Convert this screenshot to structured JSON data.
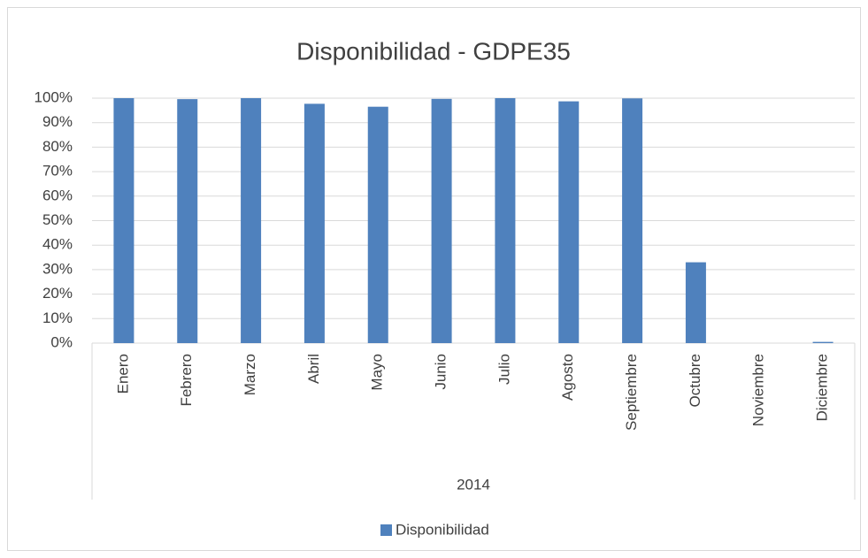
{
  "chart_data": {
    "type": "bar",
    "title": "Disponibilidad - GDPE35",
    "categories": [
      "Enero",
      "Febrero",
      "Marzo",
      "Abril",
      "Mayo",
      "Junio",
      "Julio",
      "Agosto",
      "Septiembre",
      "Octubre",
      "Noviembre",
      "Diciembre"
    ],
    "category_group": "2014",
    "series": [
      {
        "name": "Disponibilidad",
        "color": "#4f81bd",
        "values": [
          100,
          99.6,
          100,
          97.7,
          96.5,
          99.7,
          100,
          98.7,
          99.9,
          33,
          0,
          0.5
        ]
      }
    ],
    "ylim": [
      0,
      100
    ],
    "yticks": [
      {
        "value": 0,
        "label": "0%"
      },
      {
        "value": 10,
        "label": "10%"
      },
      {
        "value": 20,
        "label": "20%"
      },
      {
        "value": 30,
        "label": "30%"
      },
      {
        "value": 40,
        "label": "40%"
      },
      {
        "value": 50,
        "label": "50%"
      },
      {
        "value": 60,
        "label": "60%"
      },
      {
        "value": 70,
        "label": "70%"
      },
      {
        "value": 80,
        "label": "80%"
      },
      {
        "value": 90,
        "label": "90%"
      },
      {
        "value": 100,
        "label": "100%"
      }
    ],
    "grid": true,
    "legend": "bottom"
  }
}
